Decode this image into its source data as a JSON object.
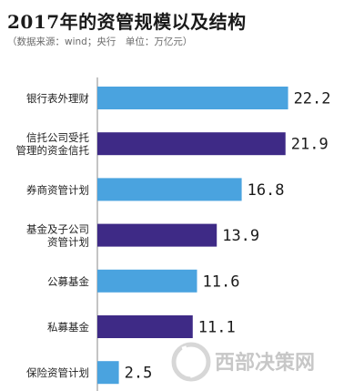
{
  "chart_data": {
    "type": "bar",
    "orientation": "horizontal",
    "title": "2017年的资管规模以及结构",
    "subtitle": "（数据来源：wind；央行　单位：万亿元）",
    "categories": [
      [
        "银行表外理财"
      ],
      [
        "信托公司受托",
        "管理的资金信托"
      ],
      [
        "券商资管计划"
      ],
      [
        "基金及子公司",
        "资管计划"
      ],
      [
        "公募基金"
      ],
      [
        "私募基金"
      ],
      [
        "保险资管计划"
      ]
    ],
    "values": [
      22.2,
      21.9,
      16.8,
      13.9,
      11.6,
      11.1,
      2.5
    ],
    "value_labels": [
      "22.2",
      "21.9",
      "16.8",
      "13.9",
      "11.6",
      "11.1",
      "2.5"
    ],
    "bar_colors": [
      "#4aa3df",
      "#3e2a86",
      "#4aa3df",
      "#3e2a86",
      "#4aa3df",
      "#3e2a86",
      "#4aa3df"
    ],
    "xlim": [
      0,
      25
    ],
    "grid": false,
    "legend": "none"
  },
  "watermark": {
    "text": "西部决策网",
    "color": "#9a9a9a"
  }
}
